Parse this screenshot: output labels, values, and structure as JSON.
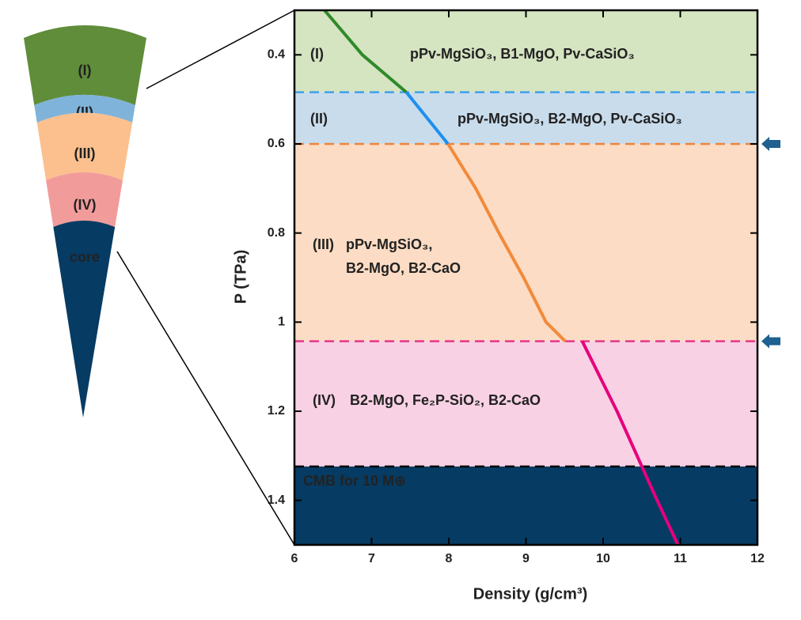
{
  "chart_data": {
    "type": "line",
    "xlabel": "Density (g/cm³)",
    "ylabel": "P (TPa)",
    "xlim": [
      6,
      12
    ],
    "xticks": [
      6,
      7,
      8,
      9,
      10,
      11,
      12
    ],
    "ylim": [
      0.3,
      1.5
    ],
    "yticks": [
      0.4,
      0.6,
      0.8,
      1,
      1.2,
      1.4
    ],
    "y_inverted": true,
    "series": [
      {
        "color": "#2f8a2a",
        "x": [
          6.39,
          6.88,
          7.45
        ],
        "values": [
          0.3,
          0.4,
          0.484
        ]
      },
      {
        "color": "#1e8fef",
        "x": [
          7.45,
          7.99
        ],
        "values": [
          0.484,
          0.6
        ]
      },
      {
        "color": "#f28a3a",
        "x": [
          7.99,
          8.35,
          8.65,
          8.97,
          9.26,
          9.51
        ],
        "values": [
          0.6,
          0.7,
          0.8,
          0.9,
          1.0,
          1.043
        ]
      },
      {
        "color": "#e6007e",
        "x": [
          9.73,
          10.18,
          10.7,
          10.97
        ],
        "values": [
          1.043,
          1.2,
          1.4,
          1.5
        ]
      }
    ],
    "boundaries": [
      {
        "value": 0.484,
        "color": "#3fa0ea",
        "arrow": false
      },
      {
        "value": 0.6,
        "color": "#f0843a",
        "arrow": true
      },
      {
        "value": 1.043,
        "color": "#e5358a",
        "arrow": true
      },
      {
        "value": 1.324,
        "color": "#000000",
        "arrow": false
      }
    ],
    "bands": [
      {
        "color": "#d5e4c1",
        "label": "(I)",
        "lines": [
          "pPv-MgSiO₃, B1-MgO, Pv-CaSiO₃"
        ]
      },
      {
        "color": "#c9dcec",
        "label": "(II)",
        "lines": [
          "pPv-MgSiO₃, B2-MgO, Pv-CaSiO₃"
        ]
      },
      {
        "color": "#fcdcc4",
        "label": "(III)",
        "lines": [
          "pPv-MgSiO₃,",
          "B2-MgO, B2-CaO"
        ]
      },
      {
        "color": "#f9d1e4",
        "label": "(IV)",
        "lines": [
          "B2-MgO, Fe₂P-SiO₂, B2-CaO"
        ]
      },
      {
        "color": "#063b63",
        "label": "CMB for 10 M⊕",
        "lines": []
      }
    ],
    "cone": [
      {
        "label": "(I)",
        "color": "#5f8d3a"
      },
      {
        "label": "(II)",
        "color": "#80b3da"
      },
      {
        "label": "(III)",
        "color": "#fbc08e"
      },
      {
        "label": "(IV)",
        "color": "#f29b9b"
      },
      {
        "label": "core",
        "color": "#063b63"
      }
    ]
  }
}
